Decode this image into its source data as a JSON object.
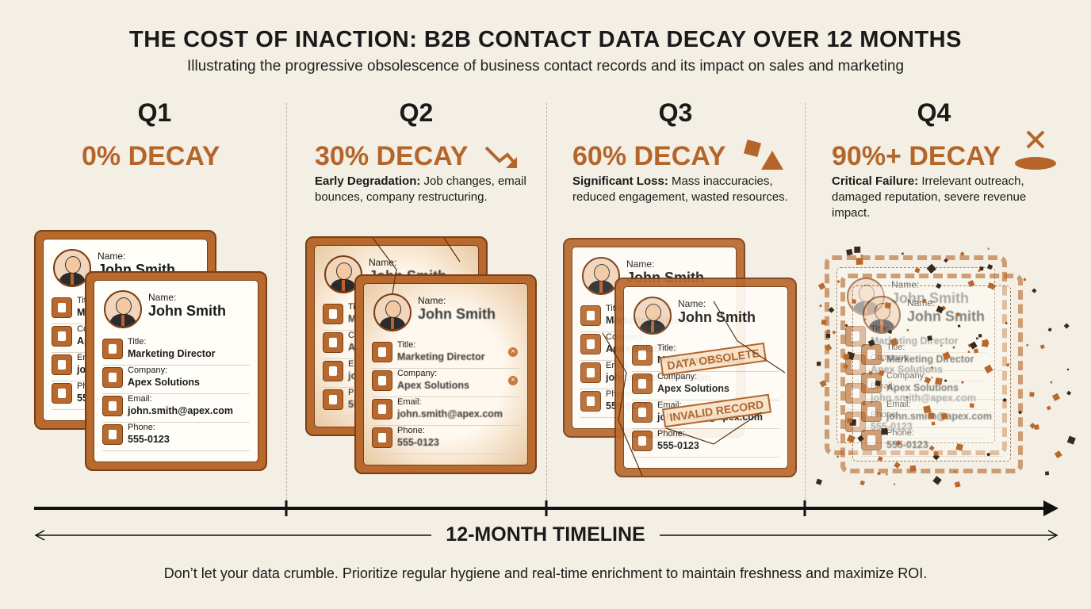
{
  "header": {
    "title": "THE COST OF INACTION: B2B CONTACT DATA DECAY OVER 12 MONTHS",
    "subtitle": "Illustrating the progressive obsolescence of business contact records and its impact on sales and marketing"
  },
  "quarters": [
    {
      "label": "Q1",
      "decay": "0% DECAY"
    },
    {
      "label": "Q2",
      "decay": "30% DECAY",
      "lead": "Early Degradation:",
      "text": "Job changes, email bounces, company restructuring."
    },
    {
      "label": "Q3",
      "decay": "60% DECAY",
      "lead": "Significant Loss:",
      "text": "Mass inaccuracies, reduced engagement, wasted resources."
    },
    {
      "label": "Q4",
      "decay": "90%+ DECAY",
      "lead": "Critical Failure:",
      "text": "Irrelevant outreach, damaged reputation, severe revenue impact."
    }
  ],
  "card": {
    "name_label": "Name:",
    "name": "John Smith",
    "fields": [
      {
        "label": "Title:",
        "value": "Marketing Director"
      },
      {
        "label": "Company:",
        "value": "Apex Solutions"
      },
      {
        "label": "Email:",
        "value": "john.smith@apex.com"
      },
      {
        "label": "Phone:",
        "value": "555-0123"
      }
    ]
  },
  "stamps": [
    "DATA OBSOLETE",
    "INVALID RECORD"
  ],
  "timeline": {
    "label": "12-MONTH TIMELINE"
  },
  "footer": "Don’t let your data crumble. Prioritize regular hygiene and real-time enrichment to maintain freshness and maximize ROI."
}
